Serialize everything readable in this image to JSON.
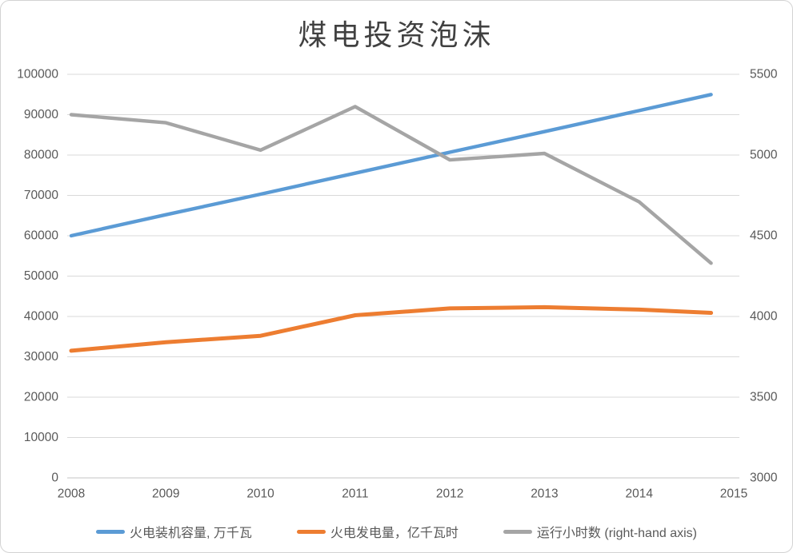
{
  "title": "煤电投资泡沫",
  "chart_data": {
    "type": "line",
    "title": "煤电投资泡沫",
    "categories": [
      2008,
      2009,
      2010,
      2011,
      2012,
      2013,
      2014,
      2015
    ],
    "series": [
      {
        "name": "火电装机容量, 万千瓦",
        "axis": "left",
        "color": "#5B9BD5",
        "stroke_width": 4.4,
        "values": [
          60000,
          65200,
          70300,
          75500,
          80700,
          85800,
          91000,
          95000
        ]
      },
      {
        "name": "火电发电量，亿千瓦时",
        "axis": "left",
        "color": "#ED7D31",
        "stroke_width": 5,
        "values": [
          31500,
          33600,
          35200,
          40300,
          42000,
          42300,
          41700,
          40900
        ]
      },
      {
        "name": "运行小时数 (right-hand axis)",
        "axis": "right",
        "color": "#A5A5A5",
        "stroke_width": 4.4,
        "values": [
          5250,
          5200,
          5030,
          5300,
          4970,
          5010,
          4710,
          4330
        ]
      }
    ],
    "left_axis": {
      "min": 0,
      "max": 100000,
      "step": 10000,
      "ticks": [
        "100000",
        "90000",
        "80000",
        "70000",
        "60000",
        "50000",
        "40000",
        "30000",
        "20000",
        "10000",
        "0"
      ]
    },
    "right_axis": {
      "min": 3000,
      "max": 5500,
      "step": 500,
      "ticks": [
        "5500",
        "5000",
        "4500",
        "4000",
        "3500",
        "3000"
      ]
    },
    "x_axis": {
      "ticks": [
        "2008",
        "2009",
        "2010",
        "2011",
        "2012",
        "2013",
        "2014",
        "2015"
      ]
    },
    "grid": true,
    "legend_position": "bottom",
    "layout": {
      "last_point_fraction": 0.76
    }
  },
  "colors": {
    "grid": "#d9d9d9",
    "axis_labels": "#595959",
    "title": "#404040"
  }
}
